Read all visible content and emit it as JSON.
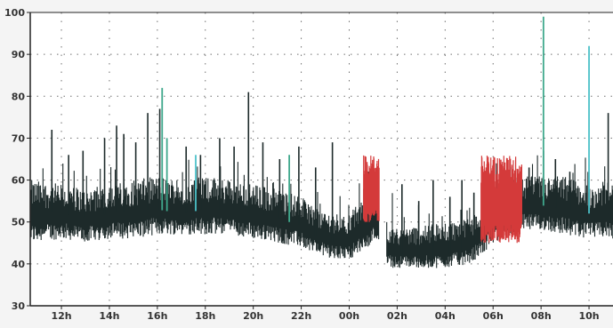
{
  "chart_data": {
    "type": "line",
    "title": "",
    "xlabel": "",
    "ylabel": "",
    "ylim": [
      30,
      100
    ],
    "y_ticks": [
      30,
      40,
      50,
      60,
      70,
      80,
      90,
      100
    ],
    "x_tick_labels": [
      "12h",
      "14h",
      "16h",
      "18h",
      "20h",
      "22h",
      "00h",
      "02h",
      "04h",
      "06h",
      "08h",
      "10h"
    ],
    "x_tick_hours": [
      12,
      14,
      16,
      18,
      20,
      22,
      24,
      26,
      28,
      30,
      32,
      34
    ],
    "xlim_hours": [
      10.7,
      35.0
    ],
    "grid": "dotted",
    "legend": "none",
    "colors": {
      "main": "#1d2a2a",
      "red": "#d43a3a",
      "green": "#3fa88c",
      "cyan": "#4cc1c9",
      "blue": "#4a7fd0",
      "grid": "#707070",
      "axis": "#222222",
      "plot_bg": "#ffffff",
      "page_bg": "#f4f4f4"
    },
    "series": [
      {
        "color_key": "main",
        "baseline_hours": [
          10.8,
          12,
          13,
          14,
          15,
          16,
          17,
          18,
          19,
          20,
          21,
          22,
          22.8,
          23.5,
          24,
          24.5,
          25,
          25.3,
          25.6,
          26,
          27,
          28,
          29,
          29.5,
          30,
          30.7,
          31,
          32,
          33,
          34,
          35
        ],
        "baseline_values": [
          53,
          52,
          51,
          52,
          53,
          53,
          52,
          53,
          53,
          52,
          51,
          49,
          46,
          45,
          45,
          48,
          50,
          51,
          43,
          42,
          42,
          42,
          43,
          46,
          50,
          52,
          54,
          54,
          53,
          52,
          52
        ],
        "band_low": [
          45,
          46,
          45,
          46,
          46,
          47,
          47,
          47,
          47,
          46,
          45,
          44,
          42,
          41,
          41,
          43,
          45,
          46,
          39,
          39,
          39,
          39,
          40,
          42,
          45,
          47,
          48,
          48,
          47,
          46,
          46
        ],
        "band_high": [
          60,
          59,
          58,
          59,
          60,
          61,
          60,
          61,
          60,
          59,
          58,
          56,
          53,
          52,
          52,
          55,
          58,
          59,
          50,
          49,
          49,
          50,
          51,
          54,
          57,
          59,
          61,
          61,
          61,
          59,
          60
        ],
        "peaks": [
          {
            "h": 11.6,
            "v": 72
          },
          {
            "h": 12.3,
            "v": 66
          },
          {
            "h": 12.9,
            "v": 67
          },
          {
            "h": 13.8,
            "v": 70
          },
          {
            "h": 14.3,
            "v": 73
          },
          {
            "h": 14.6,
            "v": 71
          },
          {
            "h": 15.1,
            "v": 69
          },
          {
            "h": 15.6,
            "v": 76
          },
          {
            "h": 16.1,
            "v": 77
          },
          {
            "h": 17.2,
            "v": 68
          },
          {
            "h": 17.8,
            "v": 66
          },
          {
            "h": 18.6,
            "v": 70
          },
          {
            "h": 19.2,
            "v": 68
          },
          {
            "h": 19.8,
            "v": 81
          },
          {
            "h": 20.4,
            "v": 69
          },
          {
            "h": 21.1,
            "v": 65
          },
          {
            "h": 21.9,
            "v": 68
          },
          {
            "h": 22.6,
            "v": 63
          },
          {
            "h": 23.3,
            "v": 69
          },
          {
            "h": 24.8,
            "v": 62
          },
          {
            "h": 26.2,
            "v": 59
          },
          {
            "h": 26.9,
            "v": 55
          },
          {
            "h": 27.5,
            "v": 60
          },
          {
            "h": 28.2,
            "v": 56
          },
          {
            "h": 28.7,
            "v": 60
          },
          {
            "h": 29.2,
            "v": 57
          },
          {
            "h": 31.5,
            "v": 63
          },
          {
            "h": 32.1,
            "v": 67
          },
          {
            "h": 32.6,
            "v": 65
          },
          {
            "h": 33.2,
            "v": 62
          },
          {
            "h": 34.8,
            "v": 76
          }
        ]
      },
      {
        "color_key": "red",
        "segments": [
          {
            "from": 24.6,
            "to": 25.25,
            "low": 50,
            "high": 66
          },
          {
            "from": 29.5,
            "to": 31.2,
            "low": 45,
            "high": 66
          }
        ]
      },
      {
        "color_key": "green",
        "spikes": [
          {
            "h": 16.2,
            "v": 82
          },
          {
            "h": 16.4,
            "v": 70
          },
          {
            "h": 21.5,
            "v": 66
          },
          {
            "h": 32.1,
            "v": 99
          }
        ]
      },
      {
        "color_key": "cyan",
        "spikes": [
          {
            "h": 34.0,
            "v": 92
          },
          {
            "h": 17.6,
            "v": 66
          }
        ]
      }
    ]
  }
}
